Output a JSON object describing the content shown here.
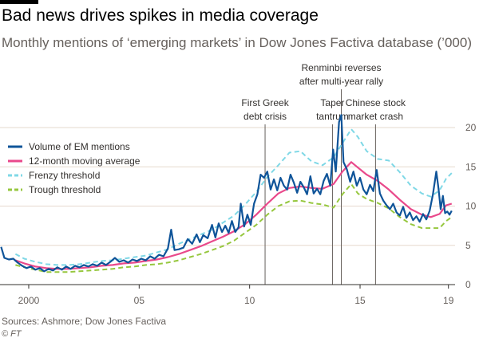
{
  "header": {
    "title": "Bad news drives spikes in media coverage",
    "subtitle": "Monthly mentions of ‘emerging markets’ in Dow Jones Factiva database (’000)"
  },
  "footer": {
    "source": "Sources: Ashmore; Dow Jones Factiva",
    "credit": "© FT"
  },
  "chart_data": {
    "type": "line",
    "title": "Bad news drives spikes in media coverage",
    "subtitle": "Monthly mentions of ‘emerging markets’ in Dow Jones Factiva database (’000)",
    "xlim": [
      1998.7,
      2019.3
    ],
    "ylim": [
      0,
      20
    ],
    "x_ticks": [
      {
        "value": 2000,
        "label": "2000"
      },
      {
        "value": 2005,
        "label": "05"
      },
      {
        "value": 2010,
        "label": "10"
      },
      {
        "value": 2015,
        "label": "15"
      },
      {
        "value": 2019,
        "label": "19"
      }
    ],
    "y_ticks": [
      0,
      5,
      10,
      15,
      20
    ],
    "grid": true,
    "legend": "top-left",
    "colors": {
      "volume": "#0f5499",
      "moving_average": "#e9498b",
      "frenzy": "#7fd8e6",
      "trough": "#96c73e",
      "annotation": "#66605c",
      "grid": "#e6d9ce"
    },
    "series": [
      {
        "name": "Volume of EM mentions",
        "style": "solid",
        "points": [
          [
            1998.75,
            4.8
          ],
          [
            1998.9,
            3.4
          ],
          [
            1999.1,
            3.2
          ],
          [
            1999.3,
            3.3
          ],
          [
            1999.5,
            2.8
          ],
          [
            1999.7,
            2.4
          ],
          [
            1999.9,
            2.1
          ],
          [
            2000.1,
            2.3
          ],
          [
            2000.3,
            1.9
          ],
          [
            2000.5,
            2.1
          ],
          [
            2000.7,
            1.7
          ],
          [
            2000.9,
            2.0
          ],
          [
            2001.1,
            1.8
          ],
          [
            2001.3,
            2.2
          ],
          [
            2001.5,
            1.9
          ],
          [
            2001.7,
            2.3
          ],
          [
            2001.9,
            2.0
          ],
          [
            2002.1,
            2.4
          ],
          [
            2002.3,
            2.2
          ],
          [
            2002.5,
            2.5
          ],
          [
            2002.7,
            2.3
          ],
          [
            2002.9,
            2.6
          ],
          [
            2003.1,
            2.4
          ],
          [
            2003.3,
            2.8
          ],
          [
            2003.5,
            2.5
          ],
          [
            2003.7,
            2.9
          ],
          [
            2003.9,
            3.4
          ],
          [
            2004.1,
            2.9
          ],
          [
            2004.3,
            3.1
          ],
          [
            2004.5,
            2.8
          ],
          [
            2004.7,
            3.2
          ],
          [
            2004.9,
            3.0
          ],
          [
            2005.1,
            3.3
          ],
          [
            2005.3,
            3.1
          ],
          [
            2005.5,
            3.6
          ],
          [
            2005.7,
            3.3
          ],
          [
            2005.9,
            3.8
          ],
          [
            2006.1,
            3.6
          ],
          [
            2006.3,
            4.6
          ],
          [
            2006.45,
            7.0
          ],
          [
            2006.6,
            4.4
          ],
          [
            2006.8,
            4.5
          ],
          [
            2007.0,
            4.7
          ],
          [
            2007.2,
            5.8
          ],
          [
            2007.4,
            5.2
          ],
          [
            2007.6,
            6.4
          ],
          [
            2007.75,
            5.4
          ],
          [
            2007.9,
            6.3
          ],
          [
            2008.1,
            5.9
          ],
          [
            2008.3,
            7.6
          ],
          [
            2008.45,
            6.0
          ],
          [
            2008.6,
            7.8
          ],
          [
            2008.75,
            6.7
          ],
          [
            2008.9,
            7.5
          ],
          [
            2009.05,
            6.6
          ],
          [
            2009.2,
            8.1
          ],
          [
            2009.35,
            6.7
          ],
          [
            2009.5,
            7.3
          ],
          [
            2009.6,
            10.3
          ],
          [
            2009.75,
            7.4
          ],
          [
            2009.9,
            8.9
          ],
          [
            2010.05,
            7.6
          ],
          [
            2010.2,
            10.3
          ],
          [
            2010.35,
            11.5
          ],
          [
            2010.5,
            14.0
          ],
          [
            2010.65,
            13.6
          ],
          [
            2010.8,
            14.4
          ],
          [
            2010.95,
            12.1
          ],
          [
            2011.1,
            13.4
          ],
          [
            2011.25,
            12.0
          ],
          [
            2011.4,
            13.6
          ],
          [
            2011.55,
            12.6
          ],
          [
            2011.7,
            12.1
          ],
          [
            2011.85,
            14.0
          ],
          [
            2012.0,
            13.0
          ],
          [
            2012.15,
            11.7
          ],
          [
            2012.3,
            13.1
          ],
          [
            2012.45,
            12.4
          ],
          [
            2012.6,
            11.5
          ],
          [
            2012.75,
            13.8
          ],
          [
            2012.9,
            11.6
          ],
          [
            2013.05,
            12.2
          ],
          [
            2013.2,
            11.5
          ],
          [
            2013.35,
            13.2
          ],
          [
            2013.5,
            14.1
          ],
          [
            2013.65,
            12.6
          ],
          [
            2013.78,
            17.2
          ],
          [
            2013.9,
            14.4
          ],
          [
            2014.05,
            20.7
          ],
          [
            2014.15,
            21.6
          ],
          [
            2014.25,
            15.6
          ],
          [
            2014.4,
            14.7
          ],
          [
            2014.55,
            13.1
          ],
          [
            2014.7,
            14.4
          ],
          [
            2014.85,
            12.6
          ],
          [
            2015.0,
            13.6
          ],
          [
            2015.15,
            12.1
          ],
          [
            2015.3,
            11.5
          ],
          [
            2015.45,
            12.7
          ],
          [
            2015.6,
            11.9
          ],
          [
            2015.75,
            14.6
          ],
          [
            2015.9,
            11.6
          ],
          [
            2016.05,
            10.7
          ],
          [
            2016.2,
            10.1
          ],
          [
            2016.35,
            9.6
          ],
          [
            2016.5,
            10.3
          ],
          [
            2016.65,
            9.2
          ],
          [
            2016.8,
            8.8
          ],
          [
            2016.95,
            9.9
          ],
          [
            2017.1,
            8.5
          ],
          [
            2017.25,
            9.2
          ],
          [
            2017.4,
            8.2
          ],
          [
            2017.55,
            8.7
          ],
          [
            2017.7,
            8.0
          ],
          [
            2017.85,
            9.0
          ],
          [
            2018.0,
            8.3
          ],
          [
            2018.15,
            9.4
          ],
          [
            2018.3,
            11.5
          ],
          [
            2018.45,
            14.4
          ],
          [
            2018.55,
            12.3
          ],
          [
            2018.65,
            9.6
          ],
          [
            2018.75,
            11.3
          ],
          [
            2018.85,
            9.1
          ],
          [
            2018.95,
            9.3
          ],
          [
            2019.05,
            8.9
          ],
          [
            2019.15,
            9.4
          ]
        ]
      },
      {
        "name": "12-month moving average",
        "style": "solid",
        "points": [
          [
            1999.4,
            3.1
          ],
          [
            1999.8,
            2.7
          ],
          [
            2000.3,
            2.3
          ],
          [
            2000.8,
            2.1
          ],
          [
            2001.3,
            2.0
          ],
          [
            2001.8,
            2.0
          ],
          [
            2002.3,
            2.1
          ],
          [
            2002.8,
            2.2
          ],
          [
            2003.3,
            2.4
          ],
          [
            2003.8,
            2.5
          ],
          [
            2004.3,
            2.7
          ],
          [
            2004.8,
            2.8
          ],
          [
            2005.3,
            3.0
          ],
          [
            2005.8,
            3.2
          ],
          [
            2006.3,
            3.5
          ],
          [
            2006.8,
            3.9
          ],
          [
            2007.3,
            4.4
          ],
          [
            2007.8,
            4.9
          ],
          [
            2008.3,
            5.5
          ],
          [
            2008.8,
            6.1
          ],
          [
            2009.3,
            6.8
          ],
          [
            2009.8,
            7.7
          ],
          [
            2010.3,
            8.9
          ],
          [
            2010.8,
            10.3
          ],
          [
            2011.3,
            11.6
          ],
          [
            2011.8,
            12.3
          ],
          [
            2012.3,
            12.5
          ],
          [
            2012.8,
            12.3
          ],
          [
            2013.3,
            12.2
          ],
          [
            2013.8,
            12.8
          ],
          [
            2014.2,
            14.4
          ],
          [
            2014.6,
            15.6
          ],
          [
            2014.9,
            14.9
          ],
          [
            2015.3,
            14.0
          ],
          [
            2015.8,
            13.2
          ],
          [
            2016.3,
            12.1
          ],
          [
            2016.8,
            10.8
          ],
          [
            2017.3,
            9.6
          ],
          [
            2017.8,
            8.9
          ],
          [
            2018.2,
            8.6
          ],
          [
            2018.6,
            9.0
          ],
          [
            2018.9,
            10.1
          ],
          [
            2019.15,
            10.3
          ]
        ]
      },
      {
        "name": "Frenzy threshold",
        "style": "dashed",
        "points": [
          [
            1999.4,
            3.9
          ],
          [
            1999.8,
            3.3
          ],
          [
            2000.3,
            2.9
          ],
          [
            2000.8,
            2.6
          ],
          [
            2001.3,
            2.5
          ],
          [
            2001.8,
            2.5
          ],
          [
            2002.3,
            2.6
          ],
          [
            2002.8,
            2.8
          ],
          [
            2003.3,
            3.0
          ],
          [
            2003.8,
            3.1
          ],
          [
            2004.3,
            3.3
          ],
          [
            2004.8,
            3.5
          ],
          [
            2005.3,
            3.7
          ],
          [
            2005.8,
            4.1
          ],
          [
            2006.3,
            4.5
          ],
          [
            2006.8,
            5.2
          ],
          [
            2007.3,
            5.8
          ],
          [
            2007.8,
            6.4
          ],
          [
            2008.3,
            7.0
          ],
          [
            2008.8,
            7.9
          ],
          [
            2009.3,
            8.8
          ],
          [
            2009.8,
            10.2
          ],
          [
            2010.3,
            11.8
          ],
          [
            2010.8,
            13.7
          ],
          [
            2011.3,
            15.2
          ],
          [
            2011.8,
            16.8
          ],
          [
            2012.3,
            17.0
          ],
          [
            2012.8,
            15.7
          ],
          [
            2013.3,
            15.2
          ],
          [
            2013.8,
            16.2
          ],
          [
            2014.2,
            18.0
          ],
          [
            2014.6,
            19.8
          ],
          [
            2014.9,
            18.8
          ],
          [
            2015.3,
            17.0
          ],
          [
            2015.8,
            16.0
          ],
          [
            2016.3,
            15.8
          ],
          [
            2016.8,
            14.3
          ],
          [
            2017.3,
            12.6
          ],
          [
            2017.8,
            11.6
          ],
          [
            2018.2,
            11.2
          ],
          [
            2018.6,
            12.0
          ],
          [
            2018.9,
            13.5
          ],
          [
            2019.15,
            14.2
          ]
        ]
      },
      {
        "name": "Trough threshold",
        "style": "dashed",
        "points": [
          [
            1999.4,
            2.5
          ],
          [
            1999.8,
            2.2
          ],
          [
            2000.3,
            1.9
          ],
          [
            2000.8,
            1.6
          ],
          [
            2001.3,
            1.6
          ],
          [
            2001.8,
            1.6
          ],
          [
            2002.3,
            1.7
          ],
          [
            2002.8,
            1.8
          ],
          [
            2003.3,
            1.9
          ],
          [
            2003.8,
            2.0
          ],
          [
            2004.3,
            2.2
          ],
          [
            2004.8,
            2.3
          ],
          [
            2005.3,
            2.5
          ],
          [
            2005.8,
            2.6
          ],
          [
            2006.3,
            2.8
          ],
          [
            2006.8,
            3.1
          ],
          [
            2007.3,
            3.5
          ],
          [
            2007.8,
            3.9
          ],
          [
            2008.3,
            4.4
          ],
          [
            2008.8,
            4.9
          ],
          [
            2009.3,
            5.6
          ],
          [
            2009.8,
            6.6
          ],
          [
            2010.3,
            7.6
          ],
          [
            2010.8,
            8.9
          ],
          [
            2011.3,
            10.0
          ],
          [
            2011.8,
            10.6
          ],
          [
            2012.3,
            10.7
          ],
          [
            2012.8,
            10.4
          ],
          [
            2013.3,
            10.2
          ],
          [
            2013.8,
            9.8
          ],
          [
            2014.2,
            11.5
          ],
          [
            2014.6,
            12.8
          ],
          [
            2014.9,
            11.6
          ],
          [
            2015.3,
            10.9
          ],
          [
            2015.8,
            10.4
          ],
          [
            2016.3,
            9.7
          ],
          [
            2016.8,
            8.6
          ],
          [
            2017.3,
            7.7
          ],
          [
            2017.8,
            7.2
          ],
          [
            2018.2,
            7.2
          ],
          [
            2018.6,
            7.2
          ],
          [
            2018.9,
            8.1
          ],
          [
            2019.15,
            8.6
          ]
        ]
      }
    ],
    "annotations": [
      {
        "x": 2010.7,
        "lines": [
          "First Greek",
          "debt crisis"
        ]
      },
      {
        "x": 2013.75,
        "lines": [
          "Taper",
          "tantrum"
        ]
      },
      {
        "x": 2014.15,
        "lines": [
          "Renminbi reverses",
          "after multi-year rally"
        ]
      },
      {
        "x": 2015.7,
        "lines": [
          "Chinese stock",
          "market crash"
        ]
      }
    ]
  }
}
